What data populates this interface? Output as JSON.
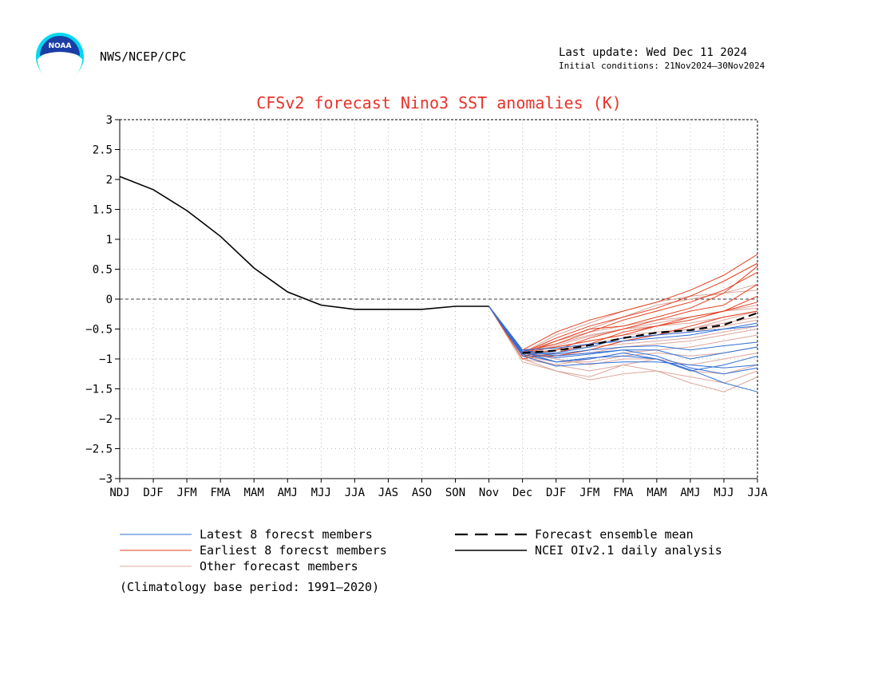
{
  "header": {
    "org": "NWS/NCEP/CPC",
    "last_update": "Last update: Wed Dec 11 2024",
    "initial_conditions": "Initial conditions: 21Nov2024–30Nov2024",
    "logo_text": "NOAA"
  },
  "colors": {
    "title": "#e8332a",
    "observed": "#000000",
    "latest": "#2f6fd6",
    "earliest": "#e5401f",
    "other": "#dca79c",
    "logo_blue": "#1a3ea6",
    "logo_cyan": "#00d8f0"
  },
  "chart_data": {
    "type": "line",
    "title": "CFSv2 forecast Nino3 SST anomalies (K)",
    "x_labels": [
      "NDJ",
      "DJF",
      "JFM",
      "FMA",
      "MAM",
      "AMJ",
      "MJJ",
      "JJA",
      "JAS",
      "ASO",
      "SON",
      "Nov",
      "Dec",
      "DJF",
      "JFM",
      "FMA",
      "MAM",
      "AMJ",
      "MJJ",
      "JJA"
    ],
    "ylim": [
      -3,
      3
    ],
    "yticks": [
      3,
      2.5,
      2,
      1.5,
      1,
      0.5,
      0,
      -0.5,
      -1,
      -1.5,
      -2,
      -2.5,
      -3
    ],
    "grid": true,
    "zero_line": true,
    "observed": {
      "name": "NCEI OIv2.1 daily analysis",
      "x": [
        0,
        1,
        2,
        3,
        4,
        5,
        6,
        7,
        8,
        9,
        10,
        11
      ],
      "values": [
        2.05,
        1.83,
        1.48,
        1.05,
        0.52,
        0.12,
        -0.1,
        -0.17,
        -0.17,
        -0.17,
        -0.12,
        -0.12
      ]
    },
    "ensemble_mean": {
      "name": "Forecast ensemble mean",
      "x": [
        12,
        13,
        14,
        15,
        16,
        17,
        18,
        19
      ],
      "values": [
        -0.9,
        -0.86,
        -0.77,
        -0.65,
        -0.56,
        -0.52,
        -0.43,
        -0.23
      ]
    },
    "members": {
      "x": [
        12,
        13,
        14,
        15,
        16,
        17,
        18,
        19
      ],
      "latest": [
        [
          -0.88,
          -1.05,
          -0.98,
          -0.95,
          -1.0,
          -1.18,
          -1.4,
          -1.55
        ],
        [
          -0.85,
          -0.95,
          -0.9,
          -0.85,
          -0.95,
          -1.15,
          -1.25,
          -1.15
        ],
        [
          -0.9,
          -0.92,
          -0.85,
          -0.8,
          -0.78,
          -0.85,
          -0.78,
          -0.72
        ],
        [
          -0.95,
          -1.12,
          -1.08,
          -1.05,
          -1.05,
          -1.1,
          -1.15,
          -1.1
        ],
        [
          -0.88,
          -0.9,
          -0.8,
          -0.65,
          -0.6,
          -0.55,
          -0.5,
          -0.45
        ],
        [
          -0.92,
          -1.05,
          -1.0,
          -0.9,
          -1.0,
          -1.2,
          -1.1,
          -0.95
        ],
        [
          -0.85,
          -0.82,
          -0.75,
          -0.7,
          -0.65,
          -0.6,
          -0.5,
          -0.4
        ],
        [
          -0.9,
          -0.98,
          -0.92,
          -0.85,
          -0.85,
          -1.0,
          -0.9,
          -0.8
        ]
      ],
      "earliest": [
        [
          -0.85,
          -0.55,
          -0.35,
          -0.2,
          -0.05,
          0.15,
          0.4,
          0.75
        ],
        [
          -0.9,
          -0.65,
          -0.45,
          -0.3,
          -0.15,
          0.05,
          0.3,
          0.6
        ],
        [
          -0.88,
          -0.75,
          -0.55,
          -0.35,
          -0.2,
          -0.05,
          0.15,
          0.45
        ],
        [
          -0.95,
          -0.85,
          -0.65,
          -0.5,
          -0.35,
          -0.2,
          -0.1,
          0.25
        ],
        [
          -0.9,
          -0.8,
          -0.7,
          -0.6,
          -0.45,
          -0.35,
          -0.2,
          -0.05
        ],
        [
          -1.0,
          -0.9,
          -0.75,
          -0.55,
          -0.45,
          -0.3,
          -0.2,
          0.05
        ],
        [
          -0.92,
          -0.7,
          -0.5,
          -0.45,
          -0.3,
          -0.15,
          0.1,
          0.55
        ],
        [
          -0.95,
          -0.95,
          -0.85,
          -0.7,
          -0.6,
          -0.45,
          -0.3,
          -0.2
        ]
      ],
      "other": [
        [
          -0.9,
          -0.7,
          -0.5,
          -0.3,
          -0.1,
          0.0,
          0.1,
          0.25
        ],
        [
          -0.95,
          -1.1,
          -1.2,
          -1.1,
          -1.2,
          -1.4,
          -1.55,
          -1.3
        ],
        [
          -0.9,
          -1.0,
          -1.1,
          -1.0,
          -1.0,
          -1.2,
          -1.25,
          -1.1
        ],
        [
          -1.0,
          -1.2,
          -1.3,
          -1.1,
          -1.0,
          -1.1,
          -1.0,
          -0.9
        ],
        [
          -0.85,
          -0.8,
          -0.7,
          -0.6,
          -0.55,
          -0.5,
          -0.4,
          -0.3
        ],
        [
          -0.88,
          -0.7,
          -0.55,
          -0.45,
          -0.35,
          -0.3,
          -0.2,
          -0.1
        ],
        [
          -0.92,
          -0.85,
          -0.75,
          -0.65,
          -0.6,
          -0.55,
          -0.45,
          -0.35
        ],
        [
          -0.95,
          -0.95,
          -0.9,
          -0.8,
          -0.75,
          -0.7,
          -0.6,
          -0.5
        ],
        [
          -0.9,
          -0.6,
          -0.4,
          -0.2,
          -0.05,
          0.05,
          0.1,
          0.15
        ],
        [
          -0.85,
          -0.75,
          -0.6,
          -0.5,
          -0.4,
          -0.3,
          -0.2,
          -0.15
        ],
        [
          -1.05,
          -1.2,
          -1.35,
          -1.25,
          -1.2,
          -1.3,
          -1.4,
          -1.2
        ],
        [
          -0.95,
          -1.05,
          -1.05,
          -0.95,
          -0.9,
          -0.95,
          -0.9,
          -0.8
        ],
        [
          -0.9,
          -0.85,
          -0.8,
          -0.75,
          -0.7,
          -0.65,
          -0.55,
          -0.45
        ],
        [
          -0.88,
          -0.78,
          -0.62,
          -0.5,
          -0.45,
          -0.4,
          -0.3,
          -0.2
        ],
        [
          -1.0,
          -1.1,
          -1.0,
          -0.9,
          -0.85,
          -0.8,
          -0.7,
          -0.6
        ],
        [
          -0.9,
          -0.95,
          -0.85,
          -0.7,
          -0.6,
          -0.5,
          -0.35,
          -0.2
        ]
      ]
    },
    "legend": [
      {
        "key": "latest",
        "label": "Latest 8 forecst members",
        "style": "thin"
      },
      {
        "key": "earliest",
        "label": "Earliest 8 forecst members",
        "style": "thin"
      },
      {
        "key": "other",
        "label": "Other forecast members",
        "style": "thin"
      },
      {
        "key": "mean",
        "label": "Forecast ensemble mean",
        "style": "dashed"
      },
      {
        "key": "observed",
        "label": "NCEI OIv2.1 daily analysis",
        "style": "solid"
      }
    ],
    "footnote": "(Climatology base period: 1991–2020)"
  }
}
